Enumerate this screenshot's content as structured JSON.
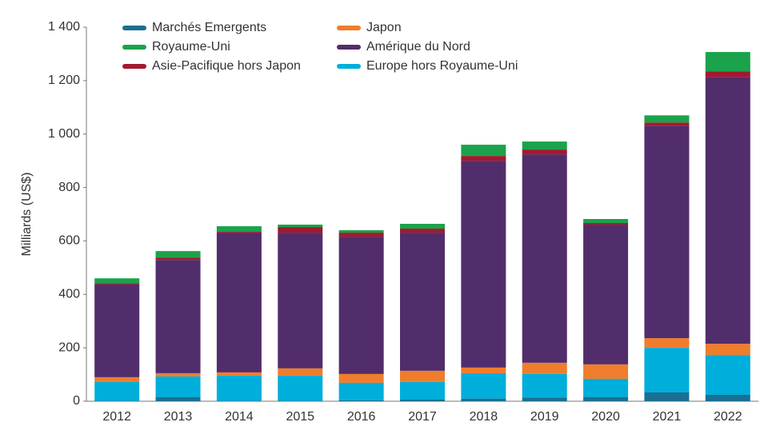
{
  "chart_data": {
    "type": "stacked-bar",
    "y_label": "Milliards (US$)",
    "categories": [
      "2012",
      "2013",
      "2014",
      "2015",
      "2016",
      "2017",
      "2018",
      "2019",
      "2020",
      "2021",
      "2022"
    ],
    "series": [
      {
        "name": "Marchés Emergents",
        "color": "#1a6f93",
        "values": [
          2,
          15,
          2,
          2,
          4,
          6,
          10,
          14,
          15,
          33,
          24
        ]
      },
      {
        "name": "Europe hors Royaume-Uni",
        "color": "#00aedb",
        "values": [
          70,
          78,
          94,
          94,
          65,
          66,
          95,
          88,
          69,
          167,
          149
        ]
      },
      {
        "name": "Japon",
        "color": "#ef7d2c",
        "values": [
          18,
          12,
          12,
          27,
          33,
          42,
          21,
          42,
          54,
          36,
          42
        ]
      },
      {
        "name": "Amérique du Nord",
        "color": "#522d6b",
        "values": [
          347,
          424,
          523,
          508,
          514,
          517,
          774,
          780,
          523,
          795,
          999
        ]
      },
      {
        "name": "Asie-Pacifique hors Japon",
        "color": "#a3192f",
        "values": [
          5,
          9,
          3,
          21,
          15,
          15,
          18,
          18,
          6,
          12,
          21
        ]
      },
      {
        "name": "Royaume-Uni",
        "color": "#1aa34a",
        "values": [
          18,
          24,
          21,
          9,
          9,
          18,
          42,
          30,
          15,
          27,
          72
        ]
      }
    ],
    "ylim": [
      0,
      1400
    ],
    "yticks": [
      0,
      200,
      400,
      600,
      800,
      {
        "value": 1000,
        "label": "1 000"
      },
      {
        "value": 1200,
        "label": "1 200"
      },
      {
        "value": 1400,
        "label": "1 400"
      }
    ],
    "grid": false
  }
}
